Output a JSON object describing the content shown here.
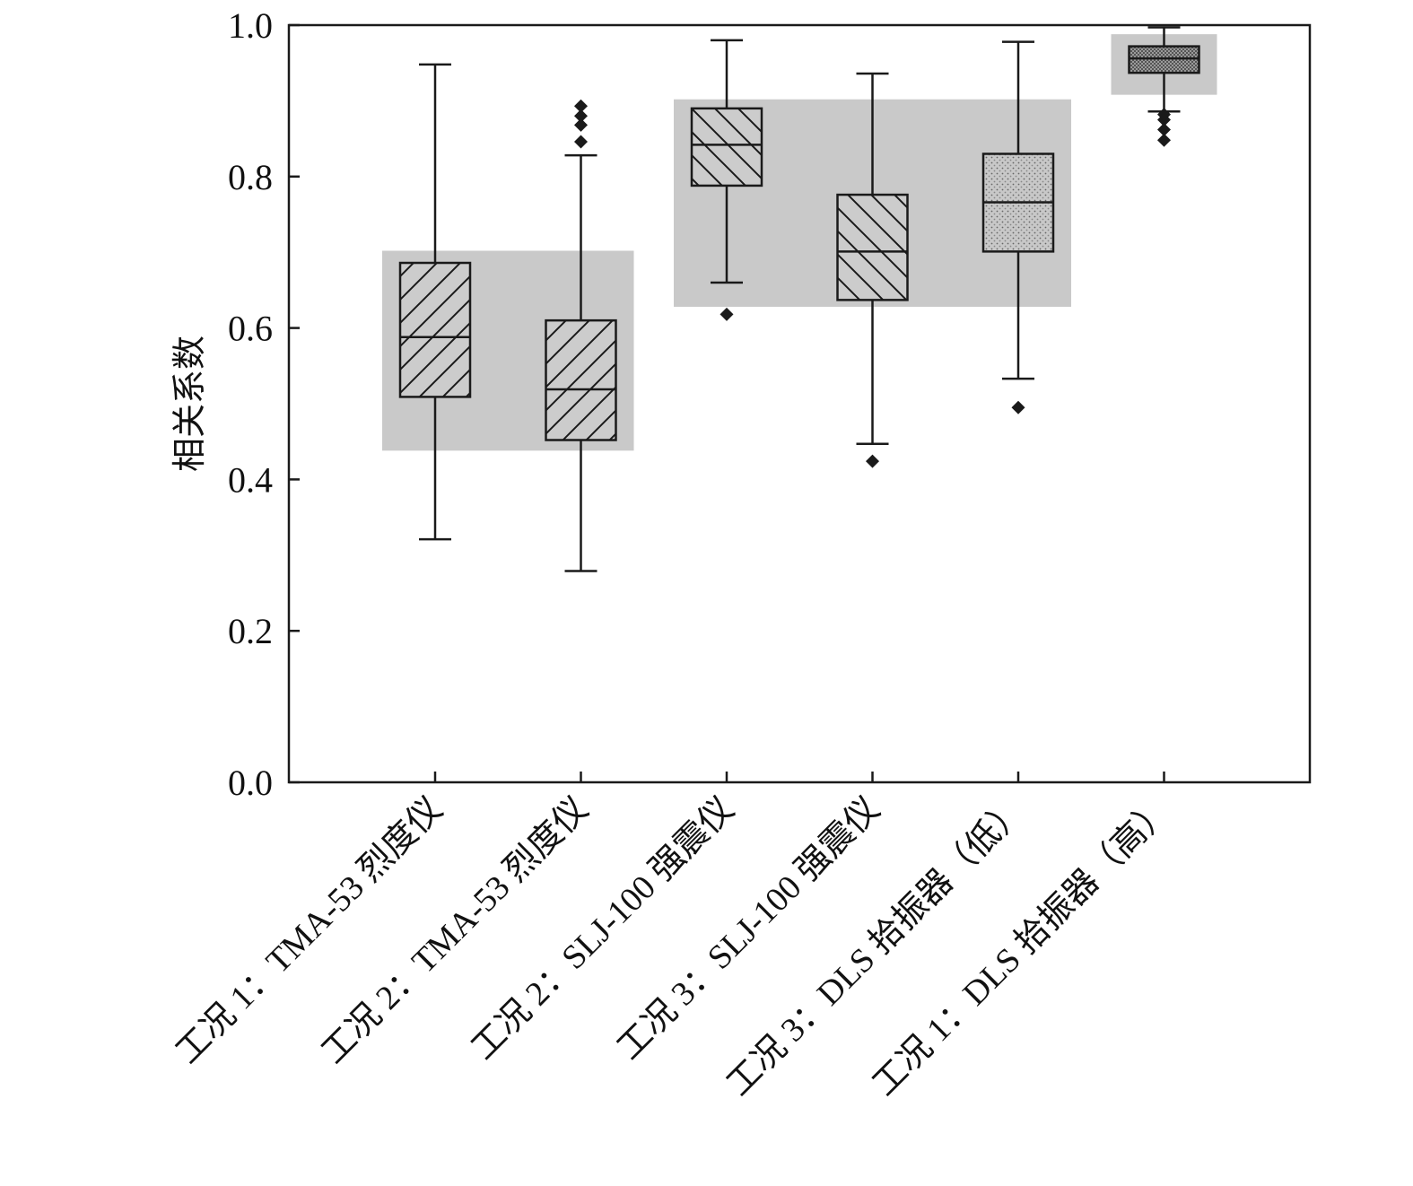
{
  "chart_data": {
    "type": "box",
    "ylabel": "相关系数",
    "xlabel": "",
    "ylim": [
      0,
      1.0
    ],
    "yticks": [
      "0.0",
      "0.2",
      "0.4",
      "0.6",
      "0.8",
      "1.0"
    ],
    "ytick_values": [
      0,
      0.2,
      0.4,
      0.6,
      0.8,
      1.0
    ],
    "grid": false,
    "categories": [
      "工况 1：TMA-53 烈度仪",
      "工况 2：TMA-53 烈度仪",
      "工况 2：SLJ-100 强震仪",
      "工况 3：SLJ-100 强震仪",
      "工况 3：DLS 拾振器（低）",
      "工况 1：DLS 拾振器（高）"
    ],
    "boxes": [
      {
        "whisker_low": 0.321,
        "q1": 0.509,
        "median": 0.588,
        "q3": 0.686,
        "whisker_high": 0.948,
        "outliers": [],
        "pattern": "diag-up"
      },
      {
        "whisker_low": 0.279,
        "q1": 0.452,
        "median": 0.519,
        "q3": 0.61,
        "whisker_high": 0.828,
        "outliers": [
          0.846,
          0.868,
          0.88,
          0.893
        ],
        "pattern": "diag-up"
      },
      {
        "whisker_low": 0.66,
        "q1": 0.788,
        "median": 0.842,
        "q3": 0.89,
        "whisker_high": 0.98,
        "outliers": [
          0.618
        ],
        "pattern": "diag-down"
      },
      {
        "whisker_low": 0.447,
        "q1": 0.637,
        "median": 0.701,
        "q3": 0.776,
        "whisker_high": 0.936,
        "outliers": [
          0.424
        ],
        "pattern": "diag-down"
      },
      {
        "whisker_low": 0.533,
        "q1": 0.701,
        "median": 0.766,
        "q3": 0.83,
        "whisker_high": 0.978,
        "outliers": [
          0.495
        ],
        "pattern": "dots"
      },
      {
        "whisker_low": 0.886,
        "q1": 0.937,
        "median": 0.956,
        "q3": 0.972,
        "whisker_high": 0.997,
        "outliers": [
          0.848,
          0.862,
          0.875,
          0.882
        ],
        "pattern": "dense"
      }
    ],
    "groups": [
      {
        "first": 0,
        "last": 1,
        "y_min": 0.438,
        "y_max": 0.702
      },
      {
        "first": 2,
        "last": 4,
        "y_min": 0.628,
        "y_max": 0.902
      },
      {
        "first": 5,
        "last": 5,
        "y_min": 0.908,
        "y_max": 0.988
      }
    ],
    "colors": {
      "group_band": "#c9c9c9",
      "box_stroke": "#1a1a1a",
      "outlier": "#1a1a1a",
      "axis": "#1a1a1a"
    }
  }
}
